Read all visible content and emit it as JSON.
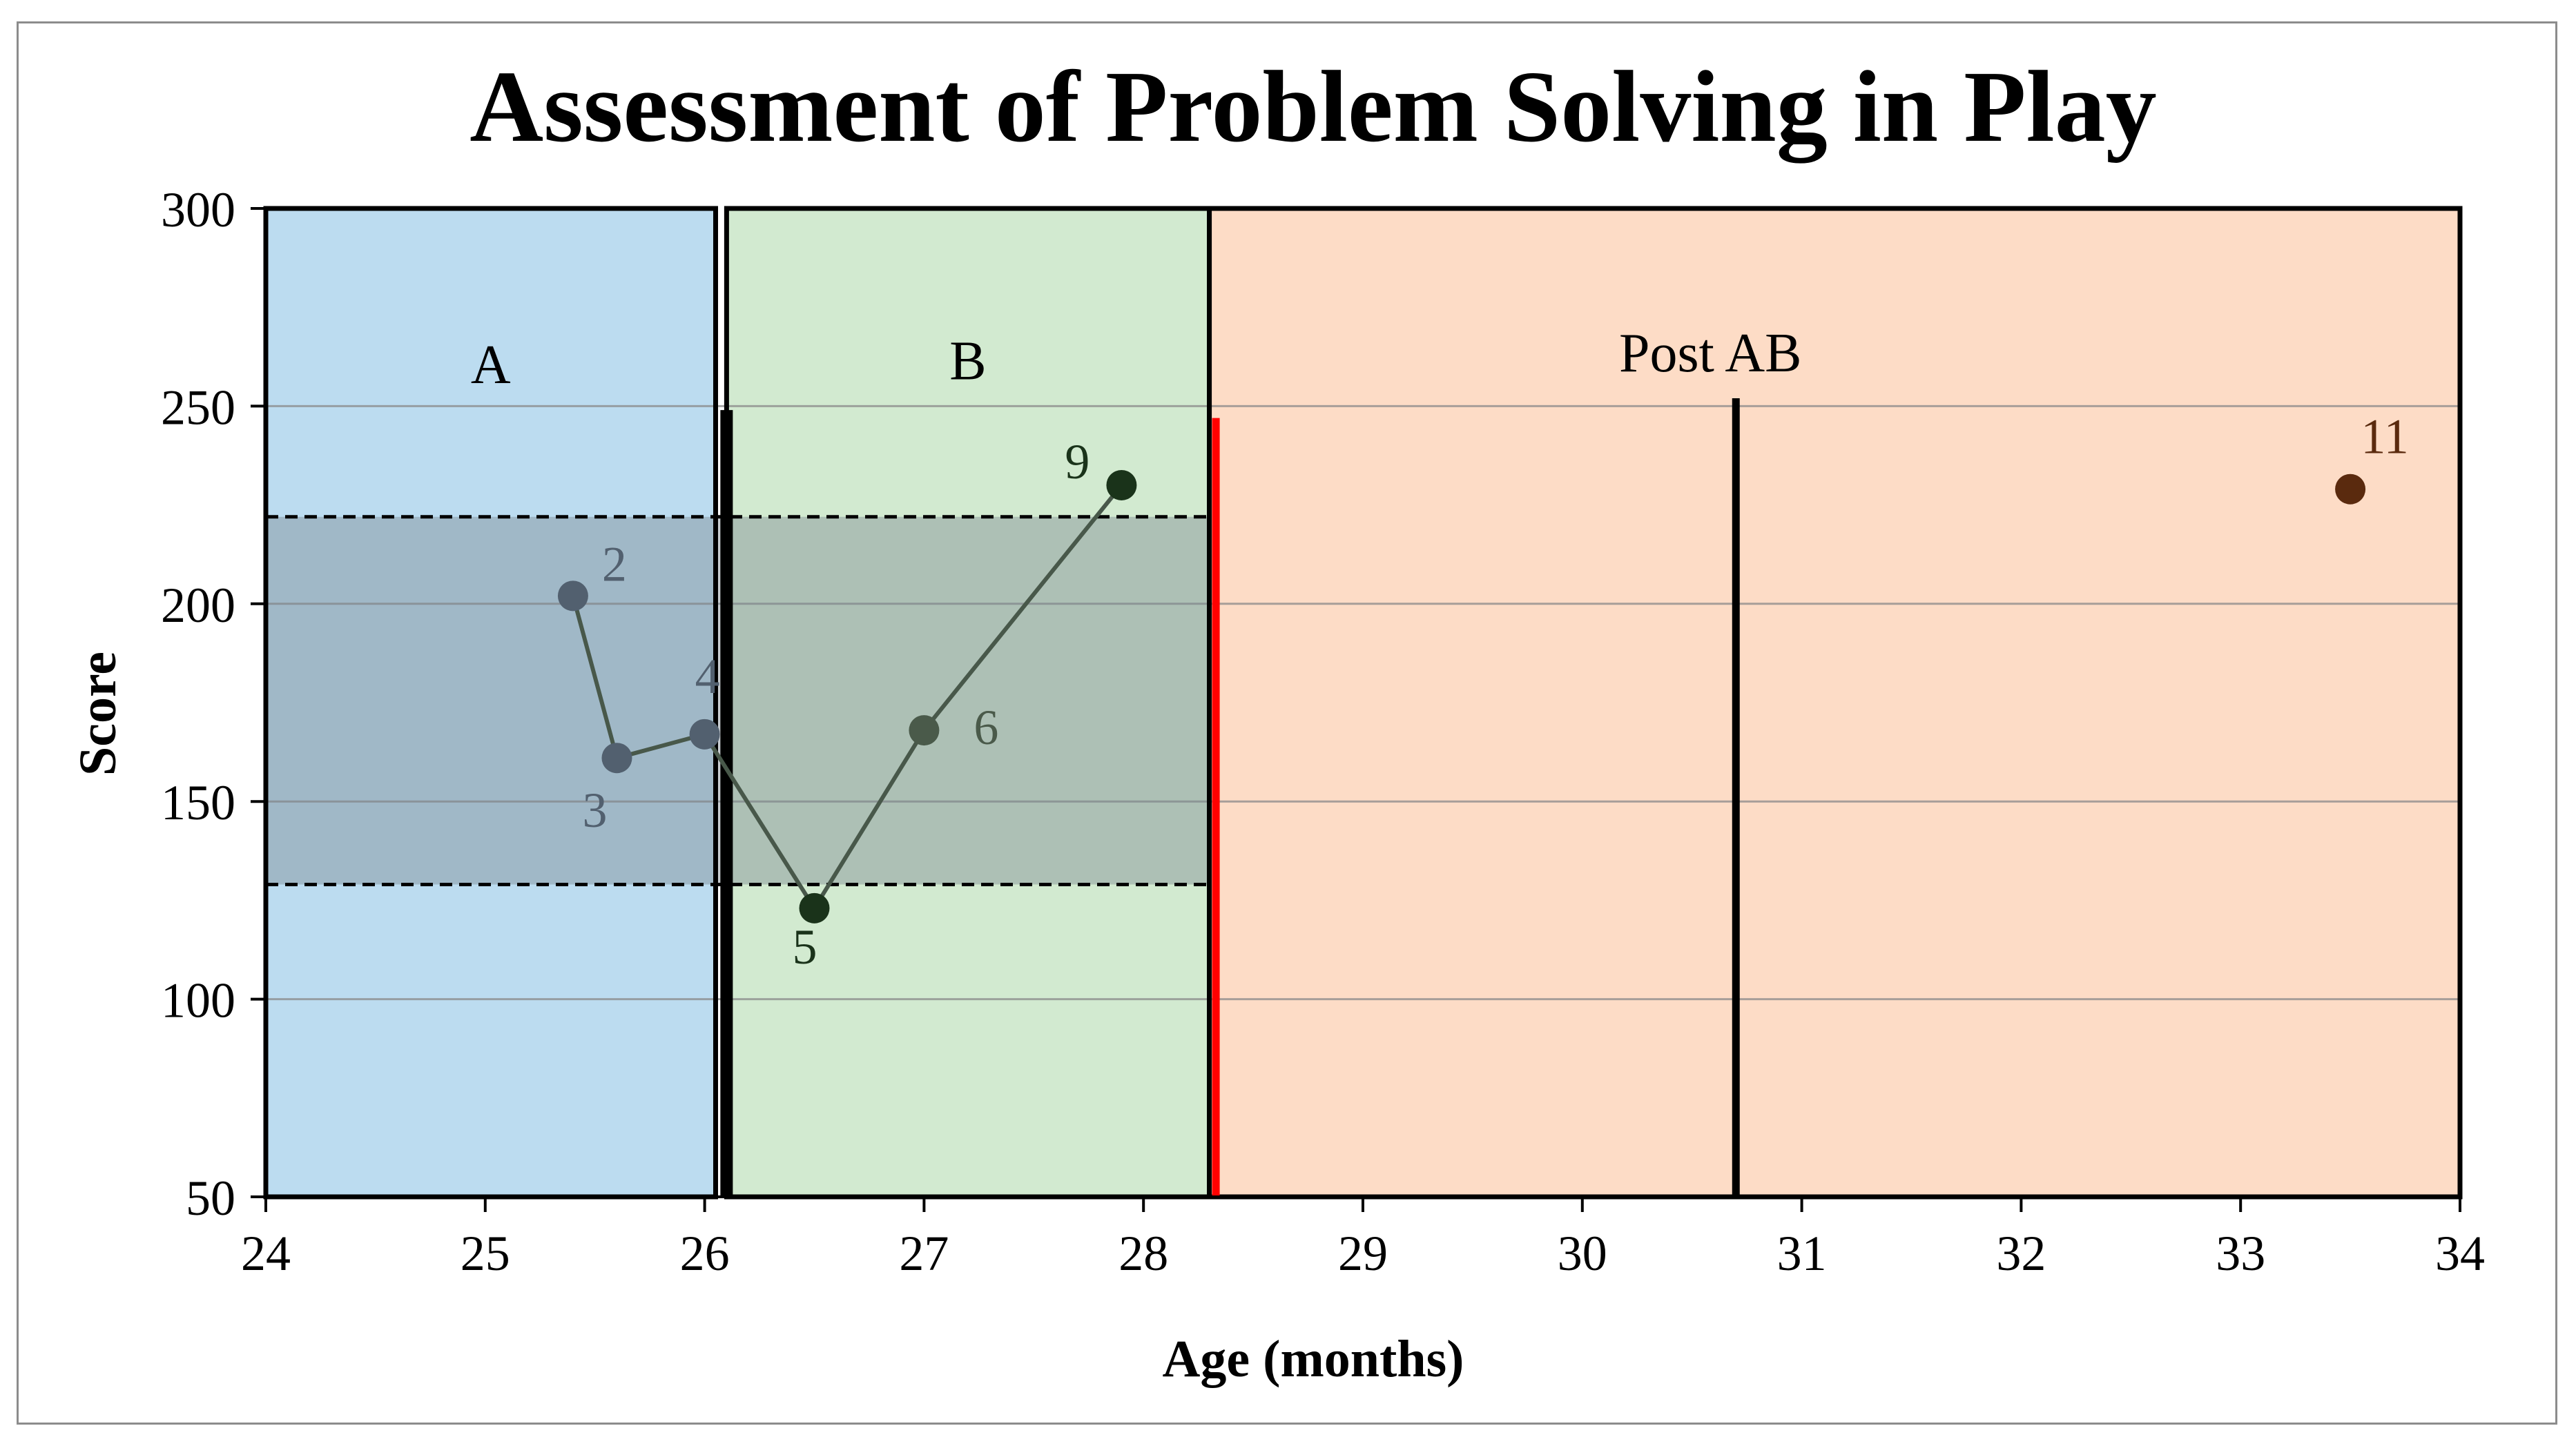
{
  "chart_data": {
    "type": "line",
    "title": "Assessment of Problem Solving in Play",
    "xlabel": "Age (months)",
    "ylabel": "Score",
    "xlim": [
      24,
      34
    ],
    "ylim": [
      50,
      300
    ],
    "x_ticks": [
      24,
      25,
      26,
      27,
      28,
      29,
      30,
      31,
      32,
      33,
      34
    ],
    "y_ticks": [
      50,
      100,
      150,
      200,
      250,
      300
    ],
    "grid": true,
    "phases": [
      {
        "label": "A",
        "x_start": 24,
        "x_end": 26.05,
        "color": "#bcdcf0"
      },
      {
        "label": "B",
        "x_start": 26.1,
        "x_end": 28.3,
        "color": "#d2ead0"
      },
      {
        "label": "Post AB",
        "x_start": 28.3,
        "x_end": 34,
        "color": "#fddcc6"
      }
    ],
    "band": {
      "lower": 129,
      "upper": 222,
      "x_start": 24,
      "x_end": 28.3
    },
    "phase_lines": [
      {
        "x": 26.1,
        "y_top": 249,
        "color": "#000000"
      },
      {
        "x": 28.33,
        "y_top": 247,
        "color": "#ff0000"
      },
      {
        "x": 30.7,
        "y_top": 252,
        "color": "#000000"
      }
    ],
    "series": [
      {
        "points": [
          {
            "label": "2",
            "x": 25.4,
            "y": 202,
            "color": "#52606f"
          },
          {
            "label": "3",
            "x": 25.6,
            "y": 161,
            "color": "#52606f"
          },
          {
            "label": "4",
            "x": 26.0,
            "y": 167,
            "color": "#52606f"
          },
          {
            "label": "5",
            "x": 26.5,
            "y": 123,
            "color": "#1a331a"
          },
          {
            "label": "6",
            "x": 27.0,
            "y": 168,
            "color": "#4a5a4a"
          },
          {
            "label": "9",
            "x": 27.9,
            "y": 230,
            "color": "#1a331a"
          }
        ]
      },
      {
        "points": [
          {
            "label": "11",
            "x": 33.5,
            "y": 229,
            "color": "#5a2a0e"
          }
        ]
      }
    ]
  }
}
